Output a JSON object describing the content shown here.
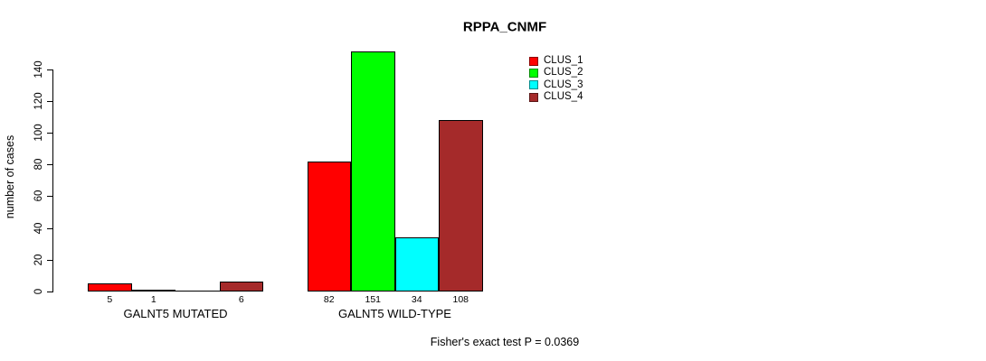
{
  "chart_data": {
    "type": "bar",
    "title": "RPPA_CNMF",
    "xlabel": "",
    "ylabel": "number of cases",
    "ylim": [
      0,
      140
    ],
    "yticks": [
      0,
      20,
      40,
      60,
      80,
      100,
      120,
      140
    ],
    "grid": false,
    "legend_position": "top-right",
    "legend": [
      {
        "name": "CLUS_1",
        "color": "#FF0000"
      },
      {
        "name": "CLUS_2",
        "color": "#00FF00"
      },
      {
        "name": "CLUS_3",
        "color": "#00FFFF"
      },
      {
        "name": "CLUS_4",
        "color": "#A52A2A"
      }
    ],
    "categories": [
      "GALNT5 MUTATED",
      "GALNT5 WILD-TYPE"
    ],
    "series": [
      {
        "name": "CLUS_1",
        "values": [
          5,
          82
        ]
      },
      {
        "name": "CLUS_2",
        "values": [
          1,
          151
        ]
      },
      {
        "name": "CLUS_3",
        "values": [
          0,
          34
        ]
      },
      {
        "name": "CLUS_4",
        "values": [
          6,
          108
        ]
      }
    ],
    "groups": [
      {
        "label": "GALNT5 MUTATED",
        "values": [
          5,
          1,
          0,
          6
        ],
        "value_labels": [
          "5",
          "1",
          "",
          "6"
        ]
      },
      {
        "label": "GALNT5 WILD-TYPE",
        "values": [
          82,
          151,
          34,
          108
        ],
        "value_labels": [
          "82",
          "151",
          "34",
          "108"
        ]
      }
    ],
    "annotation": "Fisher's exact test P = 0.0369"
  }
}
